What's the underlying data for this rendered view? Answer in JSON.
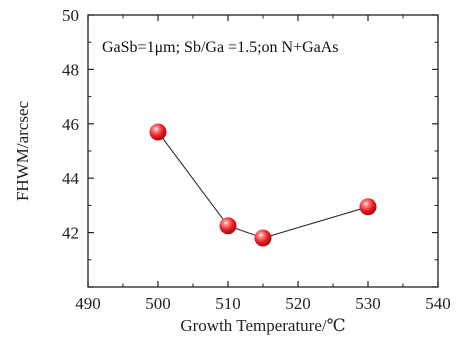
{
  "chart_data": {
    "type": "line",
    "title": "",
    "annotation": "GaSb=1μm; Sb/Ga =1.5;on N+GaAs",
    "xlabel": "Growth Temperature/℃",
    "ylabel": "FHWM/arcsec",
    "xlim": [
      490,
      540
    ],
    "ylim": [
      40,
      50
    ],
    "xticks": [
      490,
      500,
      510,
      520,
      530,
      540
    ],
    "yticks": [
      42,
      44,
      46,
      48,
      50
    ],
    "grid": false,
    "series": [
      {
        "x": [
          500,
          510,
          515,
          530
        ],
        "y": [
          45.7,
          42.25,
          41.8,
          42.95
        ],
        "marker_color": "#e8121a",
        "line_color": "#333333"
      }
    ]
  }
}
